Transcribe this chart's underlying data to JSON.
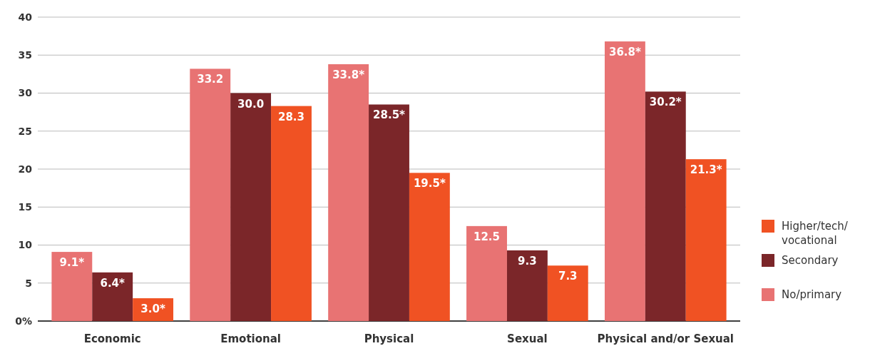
{
  "chart_data": {
    "type": "bar",
    "categories": [
      "Economic",
      "Emotional",
      "Physical",
      "Sexual",
      "Physical and/or Sexual"
    ],
    "series": [
      {
        "name": "No/primary",
        "color": "#e87373",
        "values": [
          9.1,
          33.2,
          33.8,
          12.5,
          36.8
        ],
        "value_labels": [
          "9.1*",
          "33.2",
          "33.8*",
          "12.5",
          "36.8*"
        ]
      },
      {
        "name": "Secondary",
        "color": "#7b2629",
        "values": [
          6.4,
          30.0,
          28.5,
          9.3,
          30.2
        ],
        "value_labels": [
          "6.4*",
          "30.0",
          "28.5*",
          "9.3",
          "30.2*"
        ]
      },
      {
        "name": "Higher/tech/ vocational",
        "color": "#f05223",
        "values": [
          3.0,
          28.3,
          19.5,
          7.3,
          21.3
        ],
        "value_labels": [
          "3.0*",
          "28.3",
          "19.5*",
          "7.3",
          "21.3*"
        ]
      }
    ],
    "ylim": [
      0,
      40
    ],
    "yticks": [
      {
        "value": 0,
        "label": "0%"
      },
      5,
      10,
      15,
      20,
      25,
      30,
      35,
      40
    ],
    "grid": "y",
    "legend": "right"
  }
}
